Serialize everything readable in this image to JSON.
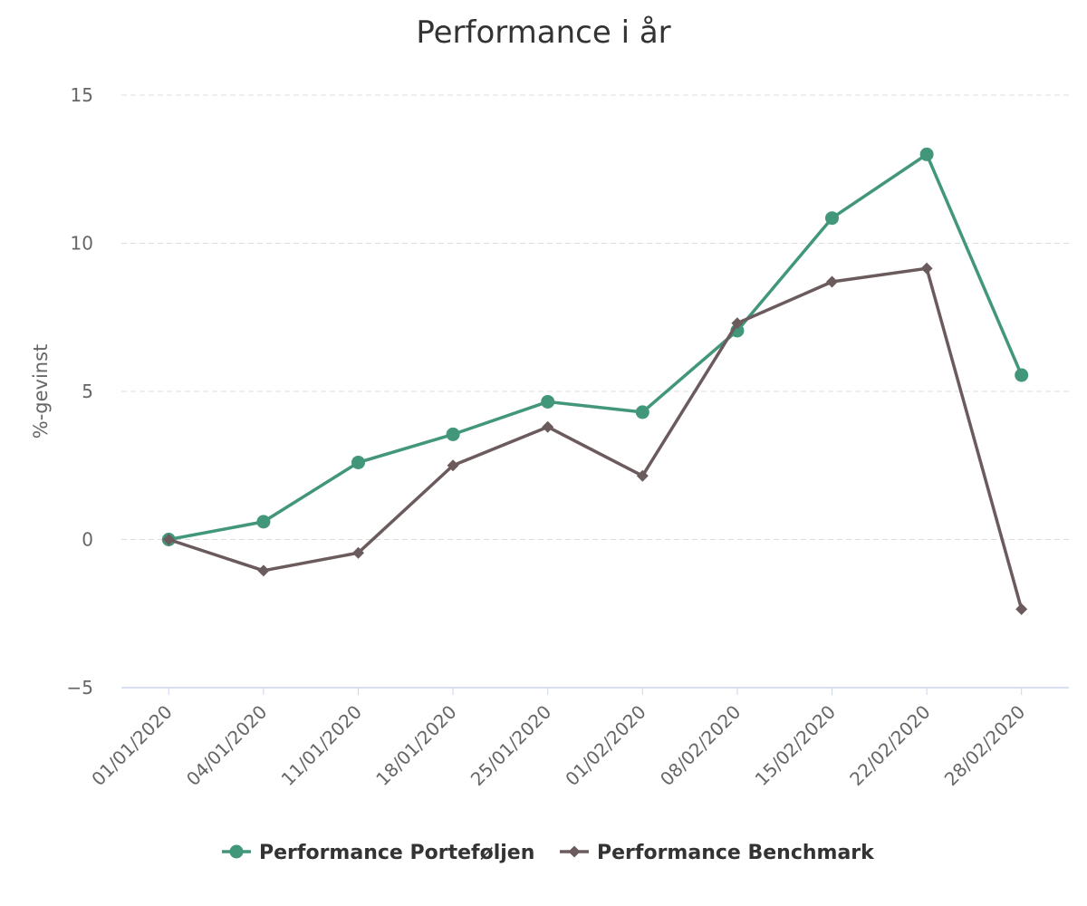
{
  "chart_data": {
    "type": "line",
    "title": "Performance i år",
    "xlabel": "",
    "ylabel": "%-gevinst",
    "ylim": [
      -5,
      15
    ],
    "yticks": [
      -5,
      0,
      5,
      10,
      15
    ],
    "ytick_labels": [
      "−5",
      "0",
      "5",
      "10",
      "15"
    ],
    "grid": true,
    "legend_position": "bottom",
    "categories": [
      "01/01/2020",
      "04/01/2020",
      "11/01/2020",
      "18/01/2020",
      "25/01/2020",
      "01/02/2020",
      "08/02/2020",
      "15/02/2020",
      "22/02/2020",
      "28/02/2020"
    ],
    "series": [
      {
        "name": "Performance Porteføljen",
        "color": "#42977a",
        "marker": "circle",
        "values": [
          0.0,
          0.6,
          2.6,
          3.55,
          4.65,
          4.3,
          7.05,
          10.85,
          13.0,
          5.55
        ]
      },
      {
        "name": "Performance Benchmark",
        "color": "#6b5b5c",
        "marker": "diamond",
        "values": [
          0.0,
          -1.05,
          -0.45,
          2.5,
          3.8,
          2.15,
          7.3,
          8.7,
          9.15,
          -2.35
        ]
      }
    ]
  }
}
